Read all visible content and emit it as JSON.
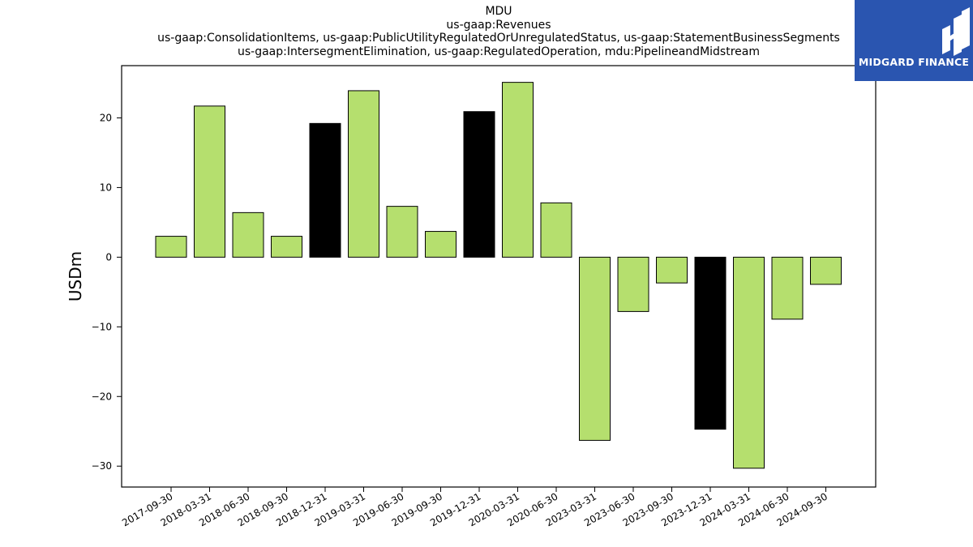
{
  "chart_data": {
    "type": "bar",
    "title_lines": [
      "MDU",
      "us-gaap:Revenues",
      "us-gaap:ConsolidationItems, us-gaap:PublicUtilityRegulatedOrUnregulatedStatus, us-gaap:StatementBusinessSegments",
      "us-gaap:IntersegmentElimination, us-gaap:RegulatedOperation, mdu:PipelineandMidstream"
    ],
    "xlabel": "",
    "ylabel": "USDm",
    "categories": [
      "2017-09-30",
      "2018-03-31",
      "2018-06-30",
      "2018-09-30",
      "2018-12-31",
      "2019-03-31",
      "2019-06-30",
      "2019-09-30",
      "2019-12-31",
      "2020-03-31",
      "2020-06-30",
      "2023-03-31",
      "2023-06-30",
      "2023-09-30",
      "2023-12-31",
      "2024-03-31",
      "2024-06-30",
      "2024-09-30"
    ],
    "values": [
      3.0,
      21.7,
      6.4,
      3.0,
      19.2,
      23.9,
      7.3,
      3.7,
      20.9,
      25.1,
      7.8,
      -26.3,
      -7.8,
      -3.7,
      -24.7,
      -30.3,
      -8.9,
      -3.9
    ],
    "bar_colors": [
      "#b5df6e",
      "#b5df6e",
      "#b5df6e",
      "#b5df6e",
      "#000000",
      "#b5df6e",
      "#b5df6e",
      "#b5df6e",
      "#000000",
      "#b5df6e",
      "#b5df6e",
      "#b5df6e",
      "#b5df6e",
      "#b5df6e",
      "#000000",
      "#b5df6e",
      "#b5df6e",
      "#b5df6e"
    ],
    "yticks": [
      -30,
      -20,
      -10,
      0,
      10,
      20
    ],
    "ylim": [
      -33.0,
      27.5
    ],
    "grid": false,
    "legend": "none"
  },
  "logo": {
    "text": "MIDGARD FINANCE",
    "background": "#2a55b0"
  }
}
